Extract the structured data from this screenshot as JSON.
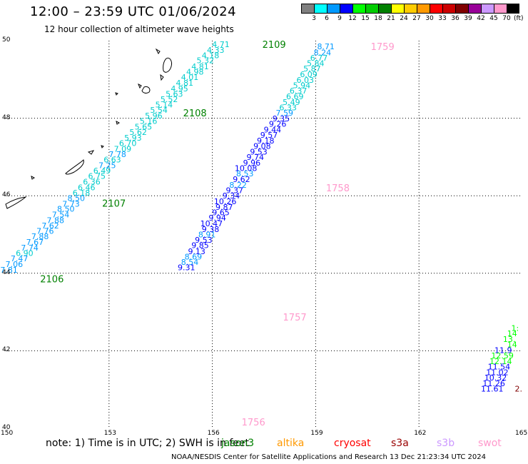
{
  "header": {
    "title": "12:00 – 23:59 UTC 01/06/2024",
    "subtitle": "12 hour collection of altimeter wave heights"
  },
  "color_scale": {
    "labels": [
      "3",
      "6",
      "9",
      "12",
      "15",
      "18",
      "21",
      "24",
      "27",
      "30",
      "33",
      "36",
      "39",
      "42",
      "45",
      "70"
    ],
    "unit": "(ft)",
    "colors": [
      "#808080",
      "#00ffff",
      "#0099ff",
      "#0000ff",
      "#00ff00",
      "#00cc00",
      "#008000",
      "#ffff00",
      "#ffcc00",
      "#ff9900",
      "#ff0000",
      "#cc0000",
      "#800000",
      "#990099",
      "#cc99ff",
      "#ff99cc",
      "#000000"
    ]
  },
  "axes": {
    "lat_labels": [
      "50",
      "48",
      "46",
      "44",
      "42",
      "40"
    ],
    "lon_labels": [
      "150",
      "153",
      "156",
      "159",
      "162",
      "165"
    ]
  },
  "map_data": {
    "lon_range": [
      150,
      165
    ],
    "lat_range": [
      40,
      50
    ],
    "tracks": [
      {
        "id": "2106-2109",
        "labels": [
          {
            "text": "2109",
            "lon": 157.45,
            "lat": 49.91,
            "color": "#008000"
          },
          {
            "text": "2108",
            "lon": 155.15,
            "lat": 48.14,
            "color": "#008000"
          },
          {
            "text": "2107",
            "lon": 152.8,
            "lat": 45.81,
            "color": "#008000"
          },
          {
            "text": "2106",
            "lon": 151.0,
            "lat": 43.86,
            "color": "#008000"
          }
        ],
        "points": [
          {
            "v": "4.71",
            "lon": 156.5,
            "lat": 49.91,
            "c": "#00cccc"
          },
          {
            "v": "4.33",
            "lon": 156.35,
            "lat": 49.76,
            "c": "#00cccc"
          },
          {
            "v": "4.18",
            "lon": 156.2,
            "lat": 49.62,
            "c": "#00cccc"
          },
          {
            "v": "5.32",
            "lon": 156.05,
            "lat": 49.49,
            "c": "#00cccc"
          },
          {
            "v": "4.81",
            "lon": 155.9,
            "lat": 49.34,
            "c": "#00cccc"
          },
          {
            "v": "4.98",
            "lon": 155.75,
            "lat": 49.2,
            "c": "#00cccc"
          },
          {
            "v": "4.01",
            "lon": 155.6,
            "lat": 49.06,
            "c": "#00cccc"
          },
          {
            "v": "4.81",
            "lon": 155.45,
            "lat": 48.91,
            "c": "#00cccc"
          },
          {
            "v": "4.95",
            "lon": 155.3,
            "lat": 48.77,
            "c": "#00cccc"
          },
          {
            "v": "5.63",
            "lon": 155.15,
            "lat": 48.63,
            "c": "#00cccc"
          },
          {
            "v": "5.52",
            "lon": 155.0,
            "lat": 48.49,
            "c": "#00cccc"
          },
          {
            "v": "5.14",
            "lon": 154.85,
            "lat": 48.35,
            "c": "#00cccc"
          },
          {
            "v": "5.54",
            "lon": 154.7,
            "lat": 48.21,
            "c": "#00cccc"
          },
          {
            "v": "5.96",
            "lon": 154.55,
            "lat": 48.07,
            "c": "#00cccc"
          },
          {
            "v": "5.16",
            "lon": 154.4,
            "lat": 47.93,
            "c": "#00cccc"
          },
          {
            "v": "5.65",
            "lon": 154.25,
            "lat": 47.78,
            "c": "#00cccc"
          },
          {
            "v": "5.62",
            "lon": 154.1,
            "lat": 47.64,
            "c": "#00cccc"
          },
          {
            "v": "5.93",
            "lon": 153.95,
            "lat": 47.5,
            "c": "#00cccc"
          },
          {
            "v": "6.70",
            "lon": 153.8,
            "lat": 47.36,
            "c": "#00cccc"
          },
          {
            "v": "7.09",
            "lon": 153.65,
            "lat": 47.21,
            "c": "#00cccc"
          },
          {
            "v": "7.78",
            "lon": 153.5,
            "lat": 47.07,
            "c": "#0099ff"
          },
          {
            "v": "6.63",
            "lon": 153.35,
            "lat": 46.93,
            "c": "#00cccc"
          },
          {
            "v": "7.25",
            "lon": 153.2,
            "lat": 46.79,
            "c": "#0099ff"
          },
          {
            "v": "6.49",
            "lon": 153.05,
            "lat": 46.65,
            "c": "#00cccc"
          },
          {
            "v": "6.75",
            "lon": 152.9,
            "lat": 46.51,
            "c": "#00cccc"
          },
          {
            "v": "6.36",
            "lon": 152.75,
            "lat": 46.36,
            "c": "#00cccc"
          },
          {
            "v": "6.46",
            "lon": 152.6,
            "lat": 46.22,
            "c": "#00cccc"
          },
          {
            "v": "6.18",
            "lon": 152.45,
            "lat": 46.08,
            "c": "#00cccc"
          },
          {
            "v": "8.50",
            "lon": 152.3,
            "lat": 45.94,
            "c": "#0099ff"
          },
          {
            "v": "7.73",
            "lon": 152.15,
            "lat": 45.79,
            "c": "#0099ff"
          },
          {
            "v": "8.50",
            "lon": 152.0,
            "lat": 45.66,
            "c": "#0099ff"
          },
          {
            "v": "7.54",
            "lon": 151.85,
            "lat": 45.52,
            "c": "#0099ff"
          },
          {
            "v": "7.88",
            "lon": 151.7,
            "lat": 45.37,
            "c": "#0099ff"
          },
          {
            "v": "7.62",
            "lon": 151.55,
            "lat": 45.23,
            "c": "#0099ff"
          },
          {
            "v": "7.76",
            "lon": 151.4,
            "lat": 45.09,
            "c": "#0099ff"
          },
          {
            "v": "7.88",
            "lon": 151.25,
            "lat": 44.95,
            "c": "#0099ff"
          },
          {
            "v": "7.67",
            "lon": 151.1,
            "lat": 44.81,
            "c": "#0099ff"
          },
          {
            "v": "7.74",
            "lon": 150.95,
            "lat": 44.66,
            "c": "#0099ff"
          },
          {
            "v": "6.90",
            "lon": 150.8,
            "lat": 44.52,
            "c": "#00cccc"
          },
          {
            "v": "7.47",
            "lon": 150.65,
            "lat": 44.38,
            "c": "#0099ff"
          },
          {
            "v": "7.06",
            "lon": 150.5,
            "lat": 44.24,
            "c": "#0099ff"
          },
          {
            "v": "7.81",
            "lon": 150.35,
            "lat": 44.09,
            "c": "#0099ff"
          }
        ]
      },
      {
        "id": "1756-1759",
        "labels": [
          {
            "text": "1759",
            "lon": 160.6,
            "lat": 49.85,
            "color": "#ff99cc"
          },
          {
            "text": "1758",
            "lon": 159.3,
            "lat": 46.21,
            "color": "#ff99cc"
          },
          {
            "text": "1757",
            "lon": 158.05,
            "lat": 42.87,
            "color": "#ff99cc"
          },
          {
            "text": "1756",
            "lon": 156.85,
            "lat": 40.17,
            "color": "#ff99cc"
          }
        ],
        "points": [
          {
            "v": "8.71",
            "lon": 159.55,
            "lat": 49.85,
            "c": "#0099ff"
          },
          {
            "v": "8.24",
            "lon": 159.45,
            "lat": 49.7,
            "c": "#0099ff"
          },
          {
            "v": "6.77",
            "lon": 159.35,
            "lat": 49.56,
            "c": "#00cccc"
          },
          {
            "v": "5.84",
            "lon": 159.25,
            "lat": 49.42,
            "c": "#00cccc"
          },
          {
            "v": "5.87",
            "lon": 159.15,
            "lat": 49.28,
            "c": "#00cccc"
          },
          {
            "v": "6.09",
            "lon": 159.05,
            "lat": 49.13,
            "c": "#00cccc"
          },
          {
            "v": "6.03",
            "lon": 158.95,
            "lat": 48.99,
            "c": "#00cccc"
          },
          {
            "v": "5.94",
            "lon": 158.85,
            "lat": 48.85,
            "c": "#00cccc"
          },
          {
            "v": "6.37",
            "lon": 158.75,
            "lat": 48.71,
            "c": "#00cccc"
          },
          {
            "v": "6.69",
            "lon": 158.65,
            "lat": 48.56,
            "c": "#00cccc"
          },
          {
            "v": "5.49",
            "lon": 158.55,
            "lat": 48.42,
            "c": "#00cccc"
          },
          {
            "v": "6.33",
            "lon": 158.45,
            "lat": 48.28,
            "c": "#00cccc"
          },
          {
            "v": "7.59",
            "lon": 158.35,
            "lat": 48.14,
            "c": "#0099ff"
          },
          {
            "v": "9.35",
            "lon": 158.25,
            "lat": 47.99,
            "c": "#0000ff"
          },
          {
            "v": "9.26",
            "lon": 158.15,
            "lat": 47.85,
            "c": "#0000ff"
          },
          {
            "v": "9.44",
            "lon": 158.0,
            "lat": 47.71,
            "c": "#0000ff"
          },
          {
            "v": "9.57",
            "lon": 157.9,
            "lat": 47.57,
            "c": "#0000ff"
          },
          {
            "v": "9.18",
            "lon": 157.8,
            "lat": 47.42,
            "c": "#0000ff"
          },
          {
            "v": "9.08",
            "lon": 157.7,
            "lat": 47.28,
            "c": "#0000ff"
          },
          {
            "v": "9.53",
            "lon": 157.6,
            "lat": 47.14,
            "c": "#0000ff"
          },
          {
            "v": "9.74",
            "lon": 157.5,
            "lat": 47.0,
            "c": "#0000ff"
          },
          {
            "v": "9.96",
            "lon": 157.4,
            "lat": 46.85,
            "c": "#0000ff"
          },
          {
            "v": "10.08",
            "lon": 157.3,
            "lat": 46.71,
            "c": "#0000ff"
          },
          {
            "v": "8.53",
            "lon": 157.2,
            "lat": 46.57,
            "c": "#0099ff"
          },
          {
            "v": "9.62",
            "lon": 157.1,
            "lat": 46.43,
            "c": "#0000ff"
          },
          {
            "v": "8.22",
            "lon": 157.0,
            "lat": 46.28,
            "c": "#0099ff"
          },
          {
            "v": "9.37",
            "lon": 156.9,
            "lat": 46.14,
            "c": "#0000ff"
          },
          {
            "v": "9.34",
            "lon": 156.8,
            "lat": 46.0,
            "c": "#0000ff"
          },
          {
            "v": "10.26",
            "lon": 156.7,
            "lat": 45.86,
            "c": "#0000ff"
          },
          {
            "v": "9.87",
            "lon": 156.6,
            "lat": 45.71,
            "c": "#0000ff"
          },
          {
            "v": "9.65",
            "lon": 156.5,
            "lat": 45.57,
            "c": "#0000ff"
          },
          {
            "v": "9.94",
            "lon": 156.4,
            "lat": 45.43,
            "c": "#0000ff"
          },
          {
            "v": "10.47",
            "lon": 156.3,
            "lat": 45.29,
            "c": "#0000ff"
          },
          {
            "v": "9.38",
            "lon": 156.2,
            "lat": 45.14,
            "c": "#0000ff"
          },
          {
            "v": "8.91",
            "lon": 156.1,
            "lat": 45.0,
            "c": "#0099ff"
          },
          {
            "v": "9.53",
            "lon": 156.0,
            "lat": 44.86,
            "c": "#0000ff"
          },
          {
            "v": "9.85",
            "lon": 155.9,
            "lat": 44.72,
            "c": "#0000ff"
          },
          {
            "v": "9.13",
            "lon": 155.8,
            "lat": 44.57,
            "c": "#0000ff"
          },
          {
            "v": "8.69",
            "lon": 155.7,
            "lat": 44.43,
            "c": "#0099ff"
          },
          {
            "v": "8.54",
            "lon": 155.6,
            "lat": 44.29,
            "c": "#0099ff"
          },
          {
            "v": "9.31",
            "lon": 155.5,
            "lat": 44.15,
            "c": "#0000ff"
          }
        ]
      },
      {
        "id": "east-track",
        "points": [
          {
            "v": "1:",
            "lon": 164.9,
            "lat": 42.59,
            "c": "#00ff00"
          },
          {
            "v": "14",
            "lon": 164.85,
            "lat": 42.45,
            "c": "#00ff00"
          },
          {
            "v": "13.",
            "lon": 164.8,
            "lat": 42.3,
            "c": "#00ff00"
          },
          {
            "v": "14",
            "lon": 164.85,
            "lat": 42.16,
            "c": "#00ff00"
          },
          {
            "v": "11.9",
            "lon": 164.7,
            "lat": 42.02,
            "c": "#0000ff"
          },
          {
            "v": "12.59",
            "lon": 164.75,
            "lat": 41.88,
            "c": "#00ff00"
          },
          {
            "v": "12.14",
            "lon": 164.7,
            "lat": 41.73,
            "c": "#00ff00"
          },
          {
            "v": "11.54",
            "lon": 164.65,
            "lat": 41.59,
            "c": "#0000ff"
          },
          {
            "v": "11.02",
            "lon": 164.6,
            "lat": 41.45,
            "c": "#0000ff"
          },
          {
            "v": "10.32",
            "lon": 164.55,
            "lat": 41.31,
            "c": "#0000ff"
          },
          {
            "v": "11.26",
            "lon": 164.5,
            "lat": 41.16,
            "c": "#0000ff"
          },
          {
            "v": "11.61",
            "lon": 164.45,
            "lat": 41.02,
            "c": "#0000ff"
          },
          {
            "v": "2.",
            "lon": 165.0,
            "lat": 41.02,
            "c": "#800000"
          }
        ]
      }
    ]
  },
  "footer": {
    "note": "note: 1) Time is in UTC; 2) SWH is in feet",
    "legend": [
      {
        "label": "jason3",
        "color": "#008000"
      },
      {
        "label": "altika",
        "color": "#ff9900"
      },
      {
        "label": "cryosat",
        "color": "#ff0000"
      },
      {
        "label": "s3a",
        "color": "#990000"
      },
      {
        "label": "s3b",
        "color": "#cc99ff"
      },
      {
        "label": "swot",
        "color": "#ff99cc"
      }
    ],
    "credit": "NOAA/NESDIS Center for Satellite Applications and Research    13 Dec 21:23:34 UTC 2024"
  }
}
